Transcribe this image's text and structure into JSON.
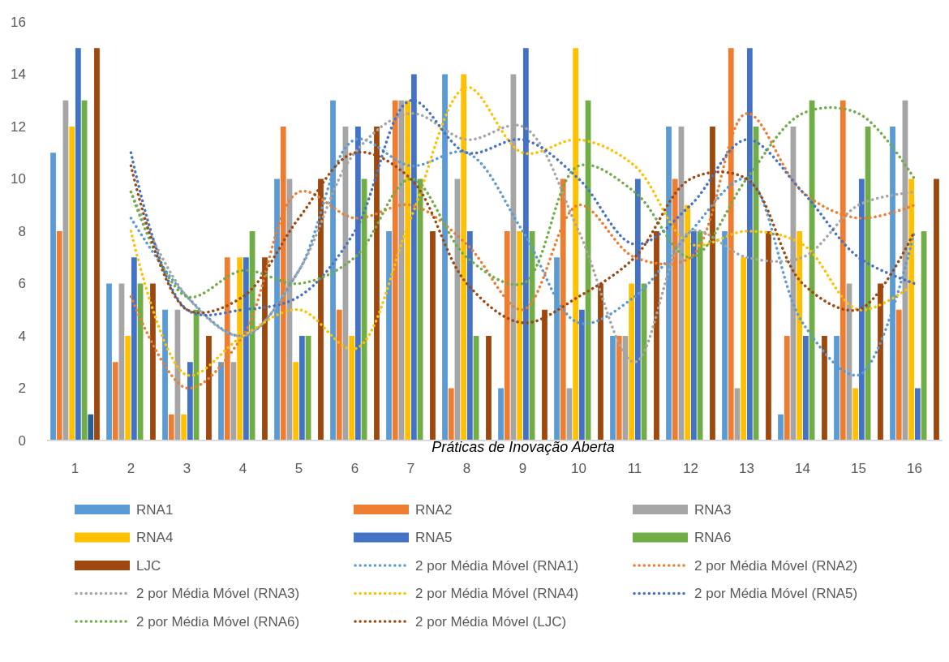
{
  "chart_data": {
    "type": "bar",
    "xlabel": "Práticas de Inovação Aberta",
    "categories": [
      "1",
      "2",
      "3",
      "4",
      "5",
      "6",
      "7",
      "8",
      "9",
      "10",
      "11",
      "12",
      "13",
      "14",
      "15",
      "16"
    ],
    "ylim": [
      0,
      16
    ],
    "yticks": [
      0,
      2,
      4,
      6,
      8,
      10,
      12,
      14,
      16
    ],
    "grid": false,
    "legend": "bottom",
    "line_style": "dotted",
    "series": [
      {
        "name": "RNA1",
        "color": "#5b9bd5",
        "values": [
          11,
          6,
          5,
          3,
          10,
          13,
          8,
          14,
          2,
          7,
          4,
          12,
          8,
          1,
          4,
          12
        ]
      },
      {
        "name": "RNA2",
        "color": "#ed7d31",
        "values": [
          8,
          3,
          1,
          7,
          12,
          5,
          13,
          2,
          8,
          10,
          4,
          10,
          15,
          4,
          13,
          5
        ]
      },
      {
        "name": "RNA3",
        "color": "#a5a5a5",
        "values": [
          13,
          6,
          5,
          3,
          10,
          12,
          13,
          10,
          14,
          2,
          4,
          12,
          2,
          12,
          6,
          13
        ]
      },
      {
        "name": "RNA4",
        "color": "#ffc000",
        "values": [
          12,
          4,
          1,
          7,
          3,
          4,
          13,
          14,
          8,
          15,
          6,
          9,
          7,
          8,
          2,
          10
        ]
      },
      {
        "name": "RNA5",
        "color": "#4472c4",
        "values": [
          15,
          7,
          3,
          7,
          4,
          12,
          14,
          8,
          15,
          5,
          10,
          8,
          15,
          4,
          10,
          2
        ]
      },
      {
        "name": "RNA6",
        "color": "#70ad47",
        "values": [
          13,
          6,
          5,
          8,
          4,
          10,
          10,
          4,
          8,
          13,
          6,
          8,
          12,
          13,
          12,
          8
        ]
      },
      {
        "color": "#255e91",
        "values": [
          1,
          null,
          null,
          null,
          null,
          null,
          null,
          null,
          null,
          null,
          null,
          null,
          null,
          null,
          null,
          null
        ]
      },
      {
        "name": "LJC",
        "color": "#9e480e",
        "values": [
          15,
          6,
          4,
          7,
          10,
          12,
          8,
          4,
          5,
          6,
          8,
          12,
          8,
          4,
          6,
          10
        ]
      },
      {
        "name": "2 por Média Móvel (RNA1)",
        "type": "line",
        "color": "#5b9bd5",
        "values": [
          null,
          8.5,
          5.5,
          4,
          6.5,
          11.5,
          10.5,
          11,
          8,
          4.5,
          5.5,
          8,
          10,
          4.5,
          2.5,
          8
        ]
      },
      {
        "name": "2 por Média Móvel (RNA2)",
        "type": "line",
        "color": "#ed7d31",
        "values": [
          null,
          5.5,
          2,
          4,
          9.5,
          8.5,
          9,
          7.5,
          5,
          9,
          7,
          7,
          12.5,
          9.5,
          8.5,
          9
        ]
      },
      {
        "name": "2 por Média Móvel (RNA3)",
        "type": "line",
        "color": "#a5a5a5",
        "values": [
          null,
          9.5,
          5.5,
          4,
          6.5,
          11,
          12.5,
          11.5,
          12,
          8,
          3,
          8,
          7,
          7,
          9,
          9.5
        ]
      },
      {
        "name": "2 por Média Móvel (RNA4)",
        "type": "line",
        "color": "#ffc000",
        "values": [
          null,
          8,
          2.5,
          4,
          5,
          3.5,
          8.5,
          13.5,
          11,
          11.5,
          10.5,
          7.5,
          8,
          7.5,
          5,
          6
        ]
      },
      {
        "name": "2 por Média Móvel (RNA5)",
        "type": "line",
        "color": "#4472c4",
        "values": [
          null,
          11,
          5,
          5,
          5.5,
          8,
          13,
          11,
          11.5,
          10,
          7.5,
          9,
          11.5,
          9.5,
          7,
          6
        ]
      },
      {
        "name": "2 por Média Móvel (RNA6)",
        "type": "line",
        "color": "#70ad47",
        "values": [
          null,
          9.5,
          5.5,
          6.5,
          6,
          7,
          10,
          7,
          6,
          10.5,
          9.5,
          7,
          10,
          12.5,
          12.5,
          10
        ]
      },
      {
        "name": "2 por Média Móvel (LJC)",
        "type": "line",
        "color": "#9e480e",
        "values": [
          null,
          10.5,
          5,
          5.5,
          8.5,
          11,
          10,
          6,
          4.5,
          5.5,
          7,
          10,
          10,
          6,
          5,
          8
        ]
      }
    ]
  }
}
